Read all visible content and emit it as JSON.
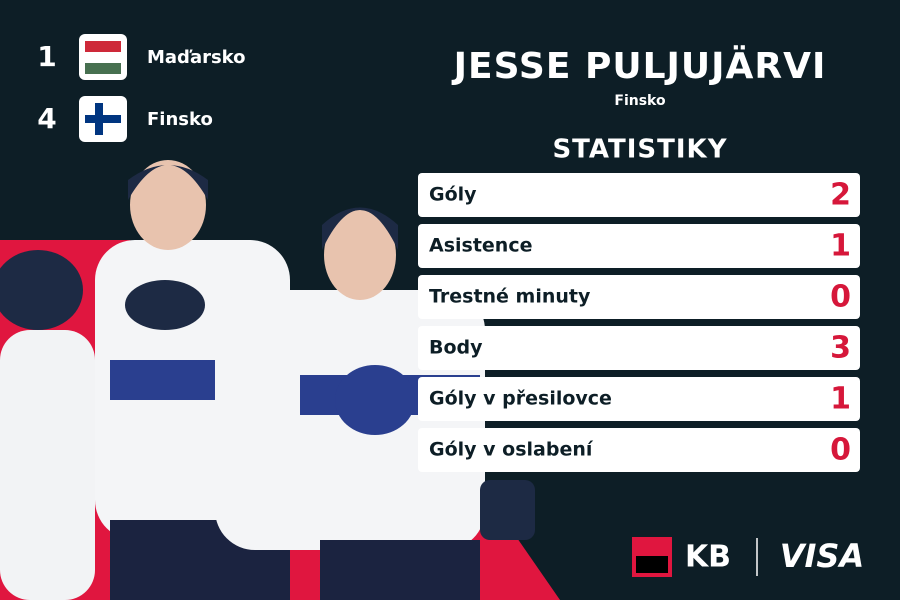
{
  "scores": [
    {
      "score": "1",
      "team": "Maďarsko"
    },
    {
      "score": "4",
      "team": "Finsko"
    }
  ],
  "player": {
    "name": "JESSE PULJUJÄRVI",
    "country": "Finsko"
  },
  "stats": {
    "heading": "STATISTIKY",
    "rows": [
      {
        "label": "Góly",
        "value": 2
      },
      {
        "label": "Asistence",
        "value": 1
      },
      {
        "label": "Trestné minuty",
        "value": 0
      },
      {
        "label": "Body",
        "value": 3
      },
      {
        "label": "Góly v přesilovce",
        "value": 1
      },
      {
        "label": "Góly v oslabení",
        "value": 0
      }
    ]
  },
  "sponsors": [
    "KB",
    "VISA"
  ]
}
